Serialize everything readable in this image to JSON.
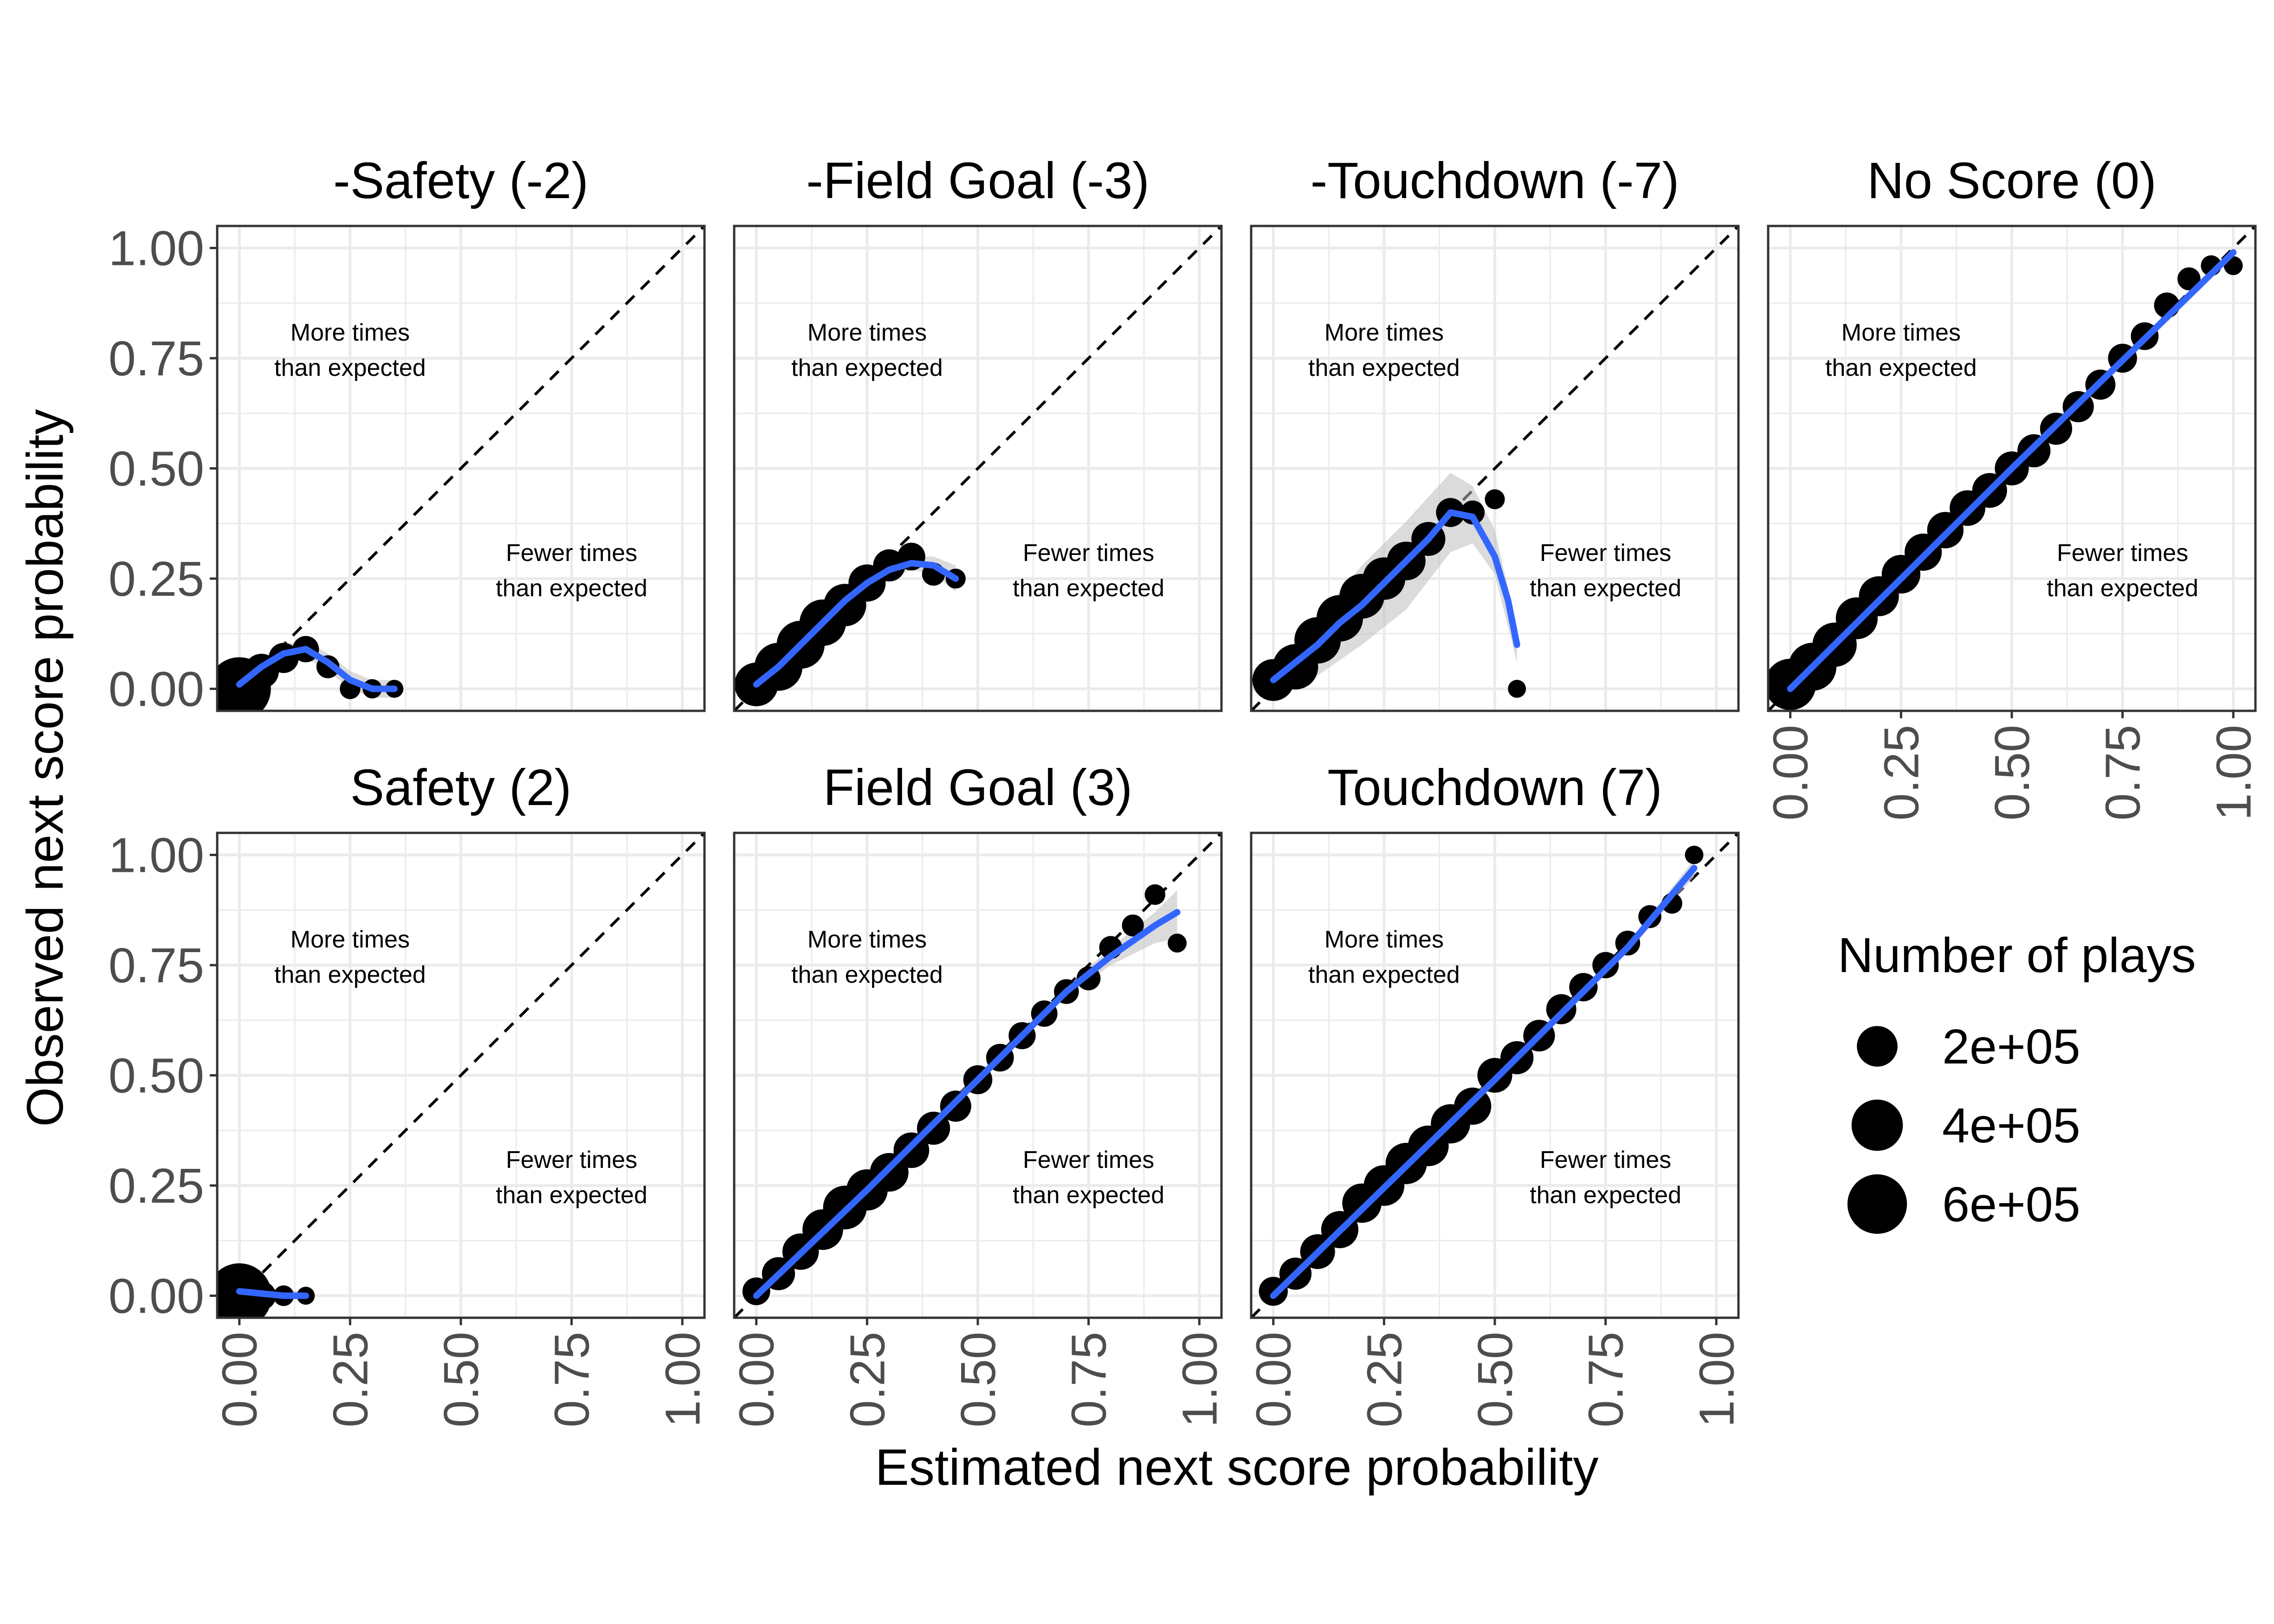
{
  "chart_data": {
    "type": "scatter",
    "xlabel": "Estimated next score probability",
    "ylabel": "Observed next score probability",
    "xlim": [
      0,
      1
    ],
    "ylim": [
      0,
      1
    ],
    "x_ticks": [
      "0.00",
      "0.25",
      "0.50",
      "0.75",
      "1.00"
    ],
    "y_ticks": [
      "0.00",
      "0.25",
      "0.50",
      "0.75",
      "1.00"
    ],
    "grid": true,
    "reference_line": "y = x (dashed)",
    "smooth_line_color": "#3366FF",
    "ribbon_color": "#BEBEBE",
    "point_color": "#000000",
    "legend": {
      "title": "Number of plays",
      "placement": "right",
      "entries": [
        {
          "label": "2e+05",
          "value": 200000
        },
        {
          "label": "4e+05",
          "value": 400000
        },
        {
          "label": "6e+05",
          "value": 600000
        }
      ]
    },
    "annotations": {
      "above": [
        "More times",
        "than expected"
      ],
      "below": [
        "Fewer times",
        "than expected"
      ]
    },
    "panels": [
      {
        "title": "-Safety (-2)",
        "points": [
          [
            0.0,
            0.0,
            700000
          ],
          [
            0.05,
            0.04,
            120000
          ],
          [
            0.1,
            0.07,
            70000
          ],
          [
            0.15,
            0.09,
            40000
          ],
          [
            0.2,
            0.05,
            20000
          ],
          [
            0.25,
            0.0,
            10000
          ],
          [
            0.3,
            0.0,
            6000
          ],
          [
            0.35,
            0.0,
            3000
          ]
        ],
        "smooth": [
          [
            0.0,
            0.01
          ],
          [
            0.05,
            0.05
          ],
          [
            0.1,
            0.08
          ],
          [
            0.15,
            0.09
          ],
          [
            0.2,
            0.06
          ],
          [
            0.25,
            0.02
          ],
          [
            0.3,
            0.0
          ],
          [
            0.35,
            0.0
          ]
        ],
        "ribbon": [
          [
            0.0,
            0.0,
            0.02
          ],
          [
            0.1,
            0.06,
            0.1
          ],
          [
            0.15,
            0.07,
            0.11
          ],
          [
            0.2,
            0.04,
            0.08
          ],
          [
            0.25,
            0.0,
            0.04
          ],
          [
            0.3,
            -0.02,
            0.02
          ],
          [
            0.35,
            -0.02,
            0.02
          ]
        ]
      },
      {
        "title": "-Field Goal (-3)",
        "points": [
          [
            0.0,
            0.01,
            250000
          ],
          [
            0.05,
            0.05,
            330000
          ],
          [
            0.1,
            0.1,
            330000
          ],
          [
            0.15,
            0.15,
            300000
          ],
          [
            0.2,
            0.19,
            230000
          ],
          [
            0.25,
            0.24,
            150000
          ],
          [
            0.3,
            0.28,
            90000
          ],
          [
            0.35,
            0.3,
            50000
          ],
          [
            0.4,
            0.26,
            20000
          ],
          [
            0.45,
            0.25,
            8000
          ]
        ],
        "smooth": [
          [
            0.0,
            0.01
          ],
          [
            0.05,
            0.05
          ],
          [
            0.1,
            0.1
          ],
          [
            0.15,
            0.15
          ],
          [
            0.2,
            0.2
          ],
          [
            0.25,
            0.24
          ],
          [
            0.3,
            0.27
          ],
          [
            0.35,
            0.285
          ],
          [
            0.4,
            0.28
          ],
          [
            0.45,
            0.25
          ]
        ],
        "ribbon": [
          [
            0.0,
            0.0,
            0.02
          ],
          [
            0.25,
            0.23,
            0.25
          ],
          [
            0.35,
            0.27,
            0.3
          ],
          [
            0.4,
            0.26,
            0.3
          ],
          [
            0.45,
            0.22,
            0.28
          ]
        ]
      },
      {
        "title": "-Touchdown (-7)",
        "points": [
          [
            0.0,
            0.02,
            220000
          ],
          [
            0.05,
            0.05,
            280000
          ],
          [
            0.1,
            0.11,
            300000
          ],
          [
            0.15,
            0.16,
            300000
          ],
          [
            0.2,
            0.21,
            270000
          ],
          [
            0.25,
            0.25,
            230000
          ],
          [
            0.3,
            0.29,
            170000
          ],
          [
            0.35,
            0.34,
            110000
          ],
          [
            0.4,
            0.4,
            60000
          ],
          [
            0.45,
            0.4,
            25000
          ],
          [
            0.5,
            0.43,
            8000
          ],
          [
            0.55,
            0.0,
            3000
          ]
        ],
        "smooth": [
          [
            0.0,
            0.02
          ],
          [
            0.05,
            0.06
          ],
          [
            0.1,
            0.1
          ],
          [
            0.15,
            0.15
          ],
          [
            0.2,
            0.19
          ],
          [
            0.25,
            0.24
          ],
          [
            0.3,
            0.29
          ],
          [
            0.35,
            0.34
          ],
          [
            0.4,
            0.4
          ],
          [
            0.45,
            0.39
          ],
          [
            0.5,
            0.3
          ],
          [
            0.53,
            0.2
          ],
          [
            0.55,
            0.1
          ]
        ],
        "ribbon": [
          [
            0.0,
            -0.01,
            0.05
          ],
          [
            0.1,
            0.03,
            0.16
          ],
          [
            0.2,
            0.1,
            0.28
          ],
          [
            0.3,
            0.18,
            0.38
          ],
          [
            0.4,
            0.31,
            0.49
          ],
          [
            0.45,
            0.33,
            0.46
          ],
          [
            0.5,
            0.26,
            0.36
          ],
          [
            0.55,
            0.06,
            0.14
          ]
        ]
      },
      {
        "title": "No Score (0)",
        "points": [
          [
            0.0,
            0.01,
            400000
          ],
          [
            0.05,
            0.05,
            330000
          ],
          [
            0.1,
            0.1,
            260000
          ],
          [
            0.15,
            0.16,
            220000
          ],
          [
            0.2,
            0.21,
            190000
          ],
          [
            0.25,
            0.26,
            170000
          ],
          [
            0.3,
            0.31,
            150000
          ],
          [
            0.35,
            0.36,
            140000
          ],
          [
            0.4,
            0.41,
            130000
          ],
          [
            0.45,
            0.45,
            120000
          ],
          [
            0.5,
            0.5,
            110000
          ],
          [
            0.55,
            0.54,
            100000
          ],
          [
            0.6,
            0.59,
            90000
          ],
          [
            0.65,
            0.64,
            80000
          ],
          [
            0.7,
            0.69,
            70000
          ],
          [
            0.75,
            0.75,
            60000
          ],
          [
            0.8,
            0.8,
            50000
          ],
          [
            0.85,
            0.87,
            35000
          ],
          [
            0.9,
            0.93,
            20000
          ],
          [
            0.95,
            0.96,
            10000
          ],
          [
            1.0,
            0.96,
            5000
          ]
        ],
        "smooth": [
          [
            0.0,
            0.0
          ],
          [
            0.5,
            0.5
          ],
          [
            1.0,
            0.99
          ]
        ],
        "ribbon": [
          [
            0.0,
            -0.01,
            0.01
          ],
          [
            1.0,
            0.98,
            1.0
          ]
        ]
      },
      {
        "title": "Safety (2)",
        "points": [
          [
            0.0,
            0.0,
            750000
          ],
          [
            0.05,
            0.0,
            60000
          ],
          [
            0.1,
            0.0,
            10000
          ],
          [
            0.15,
            0.0,
            3000
          ]
        ],
        "smooth": [
          [
            0.0,
            0.01
          ],
          [
            0.05,
            0.005
          ],
          [
            0.1,
            0.0
          ],
          [
            0.15,
            0.0
          ]
        ],
        "ribbon": [
          [
            0.0,
            0.0,
            0.02
          ],
          [
            0.15,
            -0.01,
            0.01
          ]
        ]
      },
      {
        "title": "Field Goal (3)",
        "points": [
          [
            0.0,
            0.01,
            50000
          ],
          [
            0.05,
            0.05,
            100000
          ],
          [
            0.1,
            0.1,
            140000
          ],
          [
            0.15,
            0.15,
            200000
          ],
          [
            0.2,
            0.2,
            250000
          ],
          [
            0.25,
            0.24,
            210000
          ],
          [
            0.3,
            0.28,
            170000
          ],
          [
            0.35,
            0.33,
            130000
          ],
          [
            0.4,
            0.38,
            100000
          ],
          [
            0.45,
            0.43,
            80000
          ],
          [
            0.5,
            0.49,
            60000
          ],
          [
            0.55,
            0.54,
            50000
          ],
          [
            0.6,
            0.59,
            45000
          ],
          [
            0.65,
            0.64,
            40000
          ],
          [
            0.7,
            0.69,
            30000
          ],
          [
            0.75,
            0.72,
            25000
          ],
          [
            0.8,
            0.79,
            20000
          ],
          [
            0.85,
            0.84,
            15000
          ],
          [
            0.9,
            0.91,
            10000
          ],
          [
            0.95,
            0.8,
            5000
          ]
        ],
        "smooth": [
          [
            0.0,
            0.0
          ],
          [
            0.25,
            0.24
          ],
          [
            0.5,
            0.49
          ],
          [
            0.7,
            0.69
          ],
          [
            0.8,
            0.77
          ],
          [
            0.9,
            0.84
          ],
          [
            0.95,
            0.87
          ]
        ],
        "ribbon": [
          [
            0.0,
            -0.01,
            0.01
          ],
          [
            0.7,
            0.68,
            0.7
          ],
          [
            0.8,
            0.75,
            0.79
          ],
          [
            0.9,
            0.8,
            0.87
          ],
          [
            0.95,
            0.81,
            0.92
          ]
        ]
      },
      {
        "title": "Touchdown (7)",
        "points": [
          [
            0.0,
            0.01,
            60000
          ],
          [
            0.05,
            0.05,
            90000
          ],
          [
            0.1,
            0.1,
            120000
          ],
          [
            0.15,
            0.15,
            150000
          ],
          [
            0.2,
            0.21,
            180000
          ],
          [
            0.25,
            0.25,
            200000
          ],
          [
            0.3,
            0.3,
            210000
          ],
          [
            0.35,
            0.34,
            200000
          ],
          [
            0.4,
            0.39,
            180000
          ],
          [
            0.45,
            0.43,
            150000
          ],
          [
            0.5,
            0.5,
            120000
          ],
          [
            0.55,
            0.54,
            100000
          ],
          [
            0.6,
            0.59,
            85000
          ],
          [
            0.65,
            0.65,
            70000
          ],
          [
            0.7,
            0.7,
            55000
          ],
          [
            0.75,
            0.75,
            40000
          ],
          [
            0.8,
            0.8,
            30000
          ],
          [
            0.85,
            0.86,
            20000
          ],
          [
            0.9,
            0.89,
            10000
          ],
          [
            0.95,
            1.0,
            4000
          ]
        ],
        "smooth": [
          [
            0.0,
            0.0
          ],
          [
            0.5,
            0.49
          ],
          [
            0.8,
            0.79
          ],
          [
            0.95,
            0.97
          ]
        ],
        "ribbon": [
          [
            0.0,
            -0.01,
            0.01
          ],
          [
            0.8,
            0.78,
            0.8
          ],
          [
            0.95,
            0.95,
            0.99
          ]
        ]
      }
    ]
  }
}
